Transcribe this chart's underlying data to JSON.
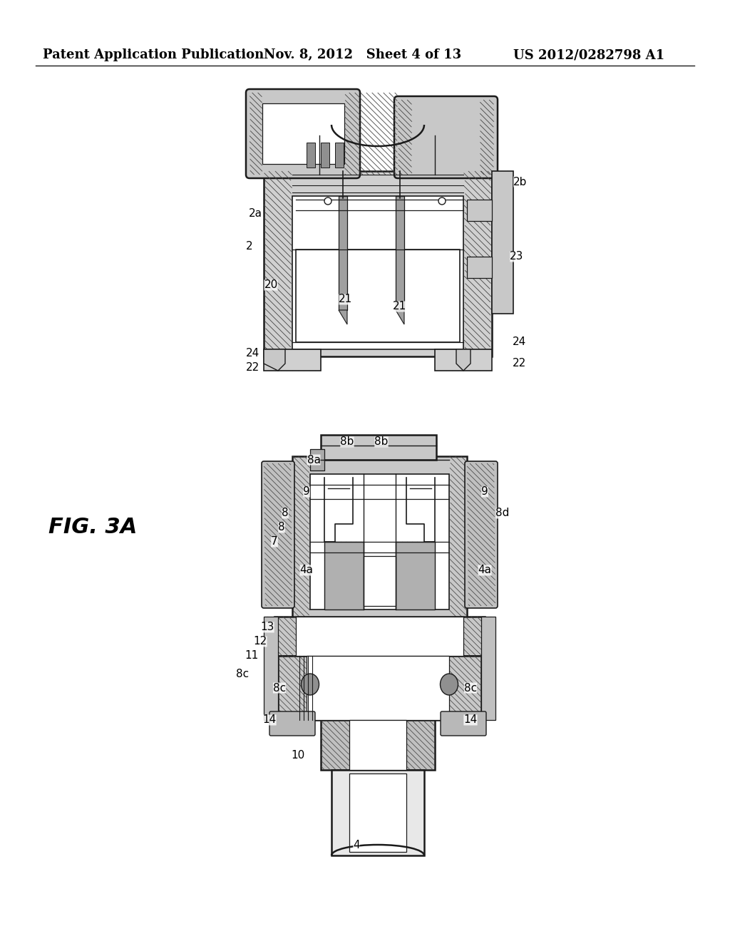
{
  "background_color": "#ffffff",
  "header_left": "Patent Application Publication",
  "header_mid": "Nov. 8, 2012   Sheet 4 of 13",
  "header_right": "US 2012/0282798 A1",
  "fig_label": "FIG. 3A",
  "header_fontsize": 13,
  "fig_label_fontsize": 22,
  "page_width": 10.24,
  "page_height": 13.2,
  "dpi": 100,
  "gray_fill": "#c8c8c8",
  "hatch_color": "#555555",
  "line_color": "#1a1a1a",
  "white": "#ffffff"
}
